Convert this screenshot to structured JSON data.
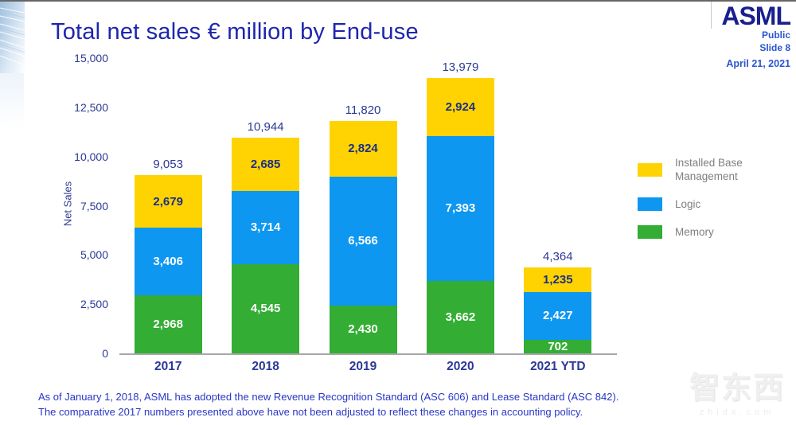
{
  "slide": {
    "title": "Total net sales € million by End-use",
    "brand": {
      "logo": "ASML",
      "classification": "Public",
      "slide_number": "Slide 8",
      "date": "April 21, 2021"
    },
    "footnote": {
      "line1": "As of January 1, 2018, ASML has adopted the new Revenue Recognition Standard (ASC 606) and Lease Standard (ASC 842).",
      "line2": "The comparative 2017 numbers presented above have not been adjusted to reflect these changes in accounting policy."
    },
    "watermark": {
      "text": "智东西",
      "subtext": "zhidx.com"
    }
  },
  "chart_data": {
    "type": "bar",
    "stacked": true,
    "title": "Total net sales € million by End-use",
    "xlabel": "",
    "ylabel": "Net Sales",
    "ylim": [
      0,
      15000
    ],
    "grid": false,
    "legend_position": "right",
    "categories": [
      "2017",
      "2018",
      "2019",
      "2020",
      "2021 YTD"
    ],
    "yticks": [
      {
        "value": 0,
        "label": "0"
      },
      {
        "value": 2500,
        "label": "2,500"
      },
      {
        "value": 5000,
        "label": "5,000"
      },
      {
        "value": 7500,
        "label": "7,500"
      },
      {
        "value": 10000,
        "label": "10,000"
      },
      {
        "value": 12500,
        "label": "12,500"
      },
      {
        "value": 15000,
        "label": "15,000"
      }
    ],
    "series": [
      {
        "name": "Memory",
        "color": "#33ad33",
        "label_color": "#ffffff",
        "values": [
          2968,
          4545,
          2430,
          3662,
          702
        ],
        "value_labels": [
          "2,968",
          "4,545",
          "2,430",
          "3,662",
          "702"
        ]
      },
      {
        "name": "Logic",
        "color": "#0d97f1",
        "label_color": "#ffffff",
        "values": [
          3406,
          3714,
          6566,
          7393,
          2427
        ],
        "value_labels": [
          "3,406",
          "3,714",
          "6,566",
          "7,393",
          "2,427"
        ]
      },
      {
        "name": "Installed Base Management",
        "color": "#ffd301",
        "label_color": "#1d2f87",
        "values": [
          2679,
          2685,
          2824,
          2924,
          1235
        ],
        "value_labels": [
          "2,679",
          "2,685",
          "2,824",
          "2,924",
          "1,235"
        ]
      }
    ],
    "totals": [
      9053,
      10944,
      11820,
      13979,
      4364
    ],
    "total_labels": [
      "9,053",
      "10,944",
      "11,820",
      "13,979",
      "4,364"
    ],
    "legend": [
      {
        "label": "Installed Base Management",
        "color": "#ffd301"
      },
      {
        "label": "Logic",
        "color": "#0d97f1"
      },
      {
        "label": "Memory",
        "color": "#33ad33"
      }
    ]
  }
}
